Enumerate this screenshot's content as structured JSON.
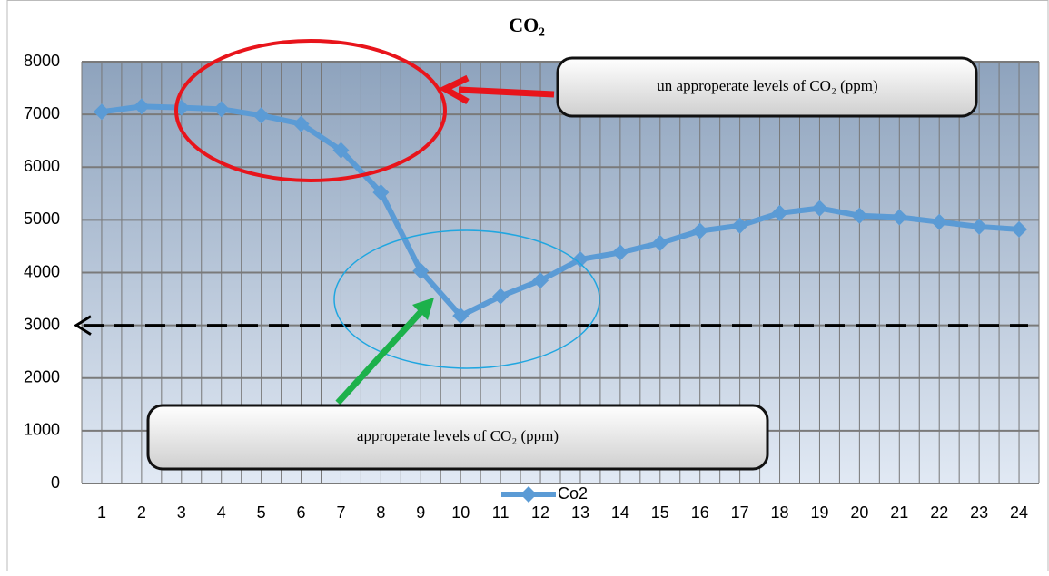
{
  "chart_data": {
    "type": "line",
    "title": "CO₂",
    "categories": [
      "1",
      "2",
      "3",
      "4",
      "5",
      "6",
      "7",
      "8",
      "9",
      "10",
      "11",
      "12",
      "13",
      "14",
      "15",
      "16",
      "17",
      "18",
      "19",
      "20",
      "21",
      "22",
      "23",
      "24"
    ],
    "series": [
      {
        "name": "Co2",
        "color": "#5b9bd5",
        "values": [
          7050,
          7150,
          7130,
          7100,
          6980,
          6820,
          6320,
          5520,
          4030,
          3180,
          3550,
          3850,
          4250,
          4380,
          4560,
          4790,
          4890,
          5130,
          5220,
          5080,
          5050,
          4960,
          4870,
          4820
        ]
      }
    ],
    "ylim": [
      0,
      8000
    ],
    "yticks": [
      0,
      1000,
      2000,
      3000,
      4000,
      5000,
      6000,
      7000,
      8000
    ],
    "grid": true,
    "reference_line": 3000,
    "annotations": [
      "un approperate levels of  CO₂ (ppm)",
      "approperate levels of  CO₂ (ppm)"
    ]
  }
}
